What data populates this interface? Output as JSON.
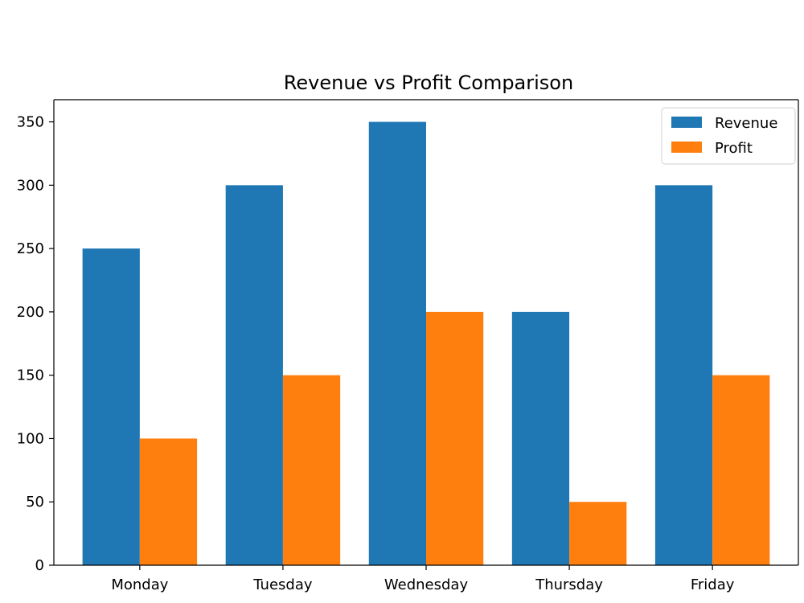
{
  "chart_data": {
    "type": "bar",
    "title": "Revenue vs Profit Comparison",
    "xlabel": "",
    "ylabel": "",
    "categories": [
      "Monday",
      "Tuesday",
      "Wednesday",
      "Thursday",
      "Friday"
    ],
    "series": [
      {
        "name": "Revenue",
        "color": "#1f77b4",
        "values": [
          250,
          300,
          350,
          200,
          300
        ]
      },
      {
        "name": "Profit",
        "color": "#ff7f0e",
        "values": [
          100,
          150,
          200,
          50,
          150
        ]
      }
    ],
    "ylim": [
      0,
      367.5
    ],
    "yticks": [
      0,
      50,
      100,
      150,
      200,
      250,
      300,
      350
    ],
    "grid": false,
    "legend_position": "top-right"
  }
}
